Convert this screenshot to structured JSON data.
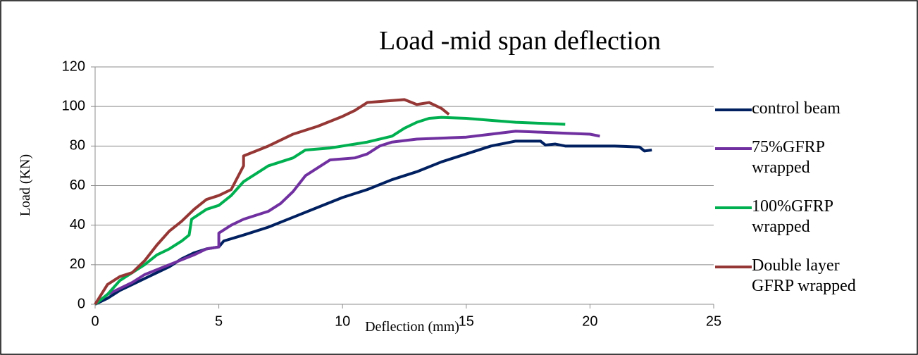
{
  "chart_data": {
    "type": "line",
    "title": "Load -mid span deflection",
    "x_label": "Deflection (mm)",
    "y_label": "Load (KN)",
    "xlim": [
      0,
      25
    ],
    "xticks": [
      0,
      5,
      10,
      15,
      20,
      25
    ],
    "ylim": [
      0,
      120
    ],
    "yticks": [
      0,
      20,
      40,
      60,
      80,
      100,
      120
    ],
    "grid": true,
    "legend": "right",
    "series": [
      {
        "name": "control beam",
        "color": "#002060",
        "x": [
          0,
          0.5,
          1,
          1.5,
          2,
          2.5,
          3,
          3.5,
          4,
          4.5,
          5,
          5.2,
          6,
          7,
          8,
          9,
          10,
          11,
          12,
          13,
          14,
          15,
          16,
          17,
          18,
          18.2,
          18.6,
          19,
          20,
          21,
          22,
          22.2,
          22.5
        ],
        "values": [
          0,
          3,
          7,
          10,
          13,
          16,
          19,
          23,
          26,
          28,
          29,
          32,
          35,
          39,
          44,
          49,
          54,
          58,
          63,
          67,
          72,
          76,
          80,
          82.5,
          82.5,
          80.5,
          81,
          80,
          80,
          80,
          79.5,
          77.5,
          78
        ]
      },
      {
        "name": "75%GFRP wrapped",
        "color": "#7030a0",
        "x": [
          0,
          0.5,
          1,
          1.5,
          2,
          3,
          4,
          4.5,
          5,
          5,
          5.5,
          6,
          7,
          7.5,
          8,
          8.5,
          9,
          9.5,
          10.5,
          11,
          11.5,
          12,
          13,
          14,
          15,
          16,
          17,
          18,
          19,
          20,
          20.4
        ],
        "values": [
          0,
          5,
          8,
          11,
          15,
          20,
          25,
          28,
          29,
          36,
          40,
          43,
          47,
          51,
          57,
          65,
          69,
          73,
          74,
          76,
          80,
          82,
          83.5,
          84,
          84.5,
          86,
          87.5,
          87,
          86.5,
          86,
          85
        ]
      },
      {
        "name": "100%GFRP wrapped",
        "color": "#00b050",
        "x": [
          0,
          0.5,
          1,
          1.5,
          2,
          2.5,
          3,
          3.5,
          3.8,
          3.9,
          4.5,
          5,
          5.5,
          6,
          6.5,
          7,
          8,
          8.5,
          9.5,
          10,
          11,
          12,
          12.5,
          13,
          13.5,
          14,
          15,
          16,
          17,
          18,
          19
        ],
        "values": [
          0,
          5,
          12,
          16,
          20,
          25,
          28,
          32,
          35,
          43,
          48,
          50,
          55,
          62,
          66,
          70,
          74,
          78,
          79,
          80,
          82,
          85,
          89,
          92,
          94,
          94.5,
          94,
          93,
          92,
          91.5,
          91
        ]
      },
      {
        "name": "Double layer GFRP wrapped",
        "color": "#953735",
        "x": [
          0,
          0.2,
          0.5,
          1,
          1.5,
          2,
          2.5,
          3,
          3.5,
          4,
          4.5,
          5,
          5.5,
          6,
          6,
          7,
          8,
          9,
          10,
          10.5,
          11,
          12,
          12.5,
          13,
          13.5,
          14,
          14.3
        ],
        "values": [
          0,
          4,
          10,
          14,
          16,
          22,
          30,
          37,
          42,
          48,
          53,
          55,
          58,
          70,
          75,
          80,
          86,
          90,
          95,
          98,
          102,
          103,
          103.5,
          101,
          102,
          99,
          96
        ]
      }
    ]
  }
}
